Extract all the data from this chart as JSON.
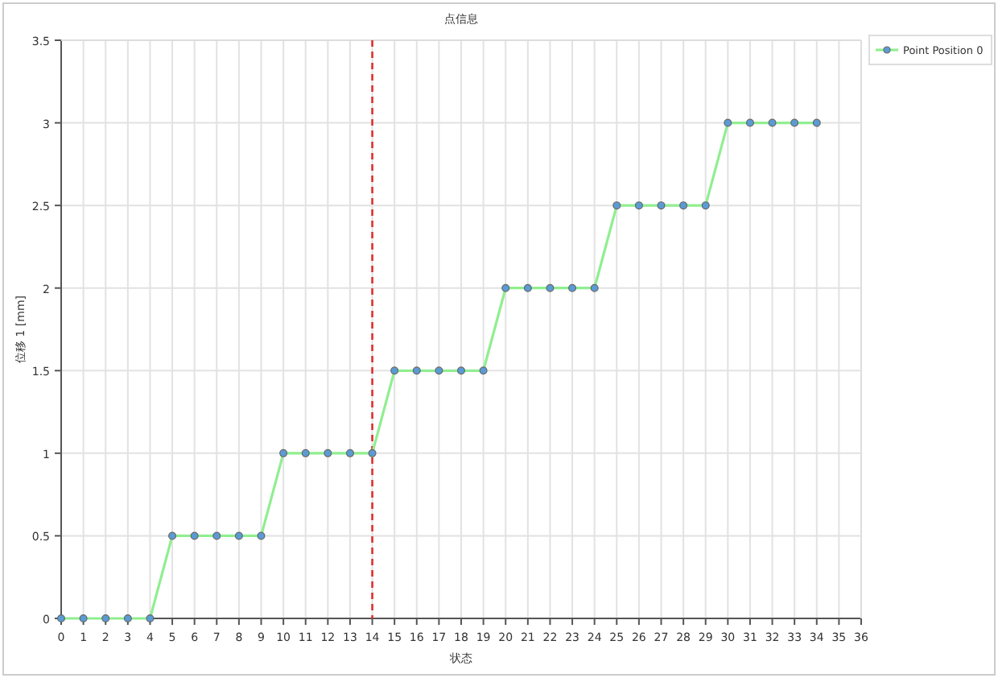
{
  "chart_data": {
    "type": "line",
    "title": "点信息",
    "xlabel": "状态",
    "ylabel": "位移 1 [mm]",
    "x": [
      0,
      1,
      2,
      3,
      4,
      5,
      6,
      7,
      8,
      9,
      10,
      11,
      12,
      13,
      14,
      15,
      16,
      17,
      18,
      19,
      20,
      21,
      22,
      23,
      24,
      25,
      26,
      27,
      28,
      29,
      30,
      31,
      32,
      33,
      34
    ],
    "series": [
      {
        "name": "Point Position 0",
        "color": "#90ee90",
        "values": [
          0,
          0,
          0,
          0,
          0,
          0.5,
          0.5,
          0.5,
          0.5,
          0.5,
          1,
          1,
          1,
          1,
          1,
          1.5,
          1.5,
          1.5,
          1.5,
          1.5,
          2,
          2,
          2,
          2,
          2,
          2.5,
          2.5,
          2.5,
          2.5,
          2.5,
          3,
          3,
          3,
          3,
          3
        ]
      }
    ],
    "xlim": [
      0,
      36
    ],
    "xticks": [
      0,
      1,
      2,
      3,
      4,
      5,
      6,
      7,
      8,
      9,
      10,
      11,
      12,
      13,
      14,
      15,
      16,
      17,
      18,
      19,
      20,
      21,
      22,
      23,
      24,
      25,
      26,
      27,
      28,
      29,
      30,
      31,
      32,
      33,
      34,
      35,
      36
    ],
    "ylim": [
      0,
      3.5
    ],
    "yticks": [
      0,
      0.5,
      1,
      1.5,
      2,
      2.5,
      3,
      3.5
    ],
    "ref_lines": [
      {
        "axis": "x",
        "value": 14,
        "color": "#e03030",
        "line_style": "dashed"
      }
    ],
    "grid": true,
    "legend": "top right",
    "marker": "circle",
    "line_style": "solid"
  }
}
